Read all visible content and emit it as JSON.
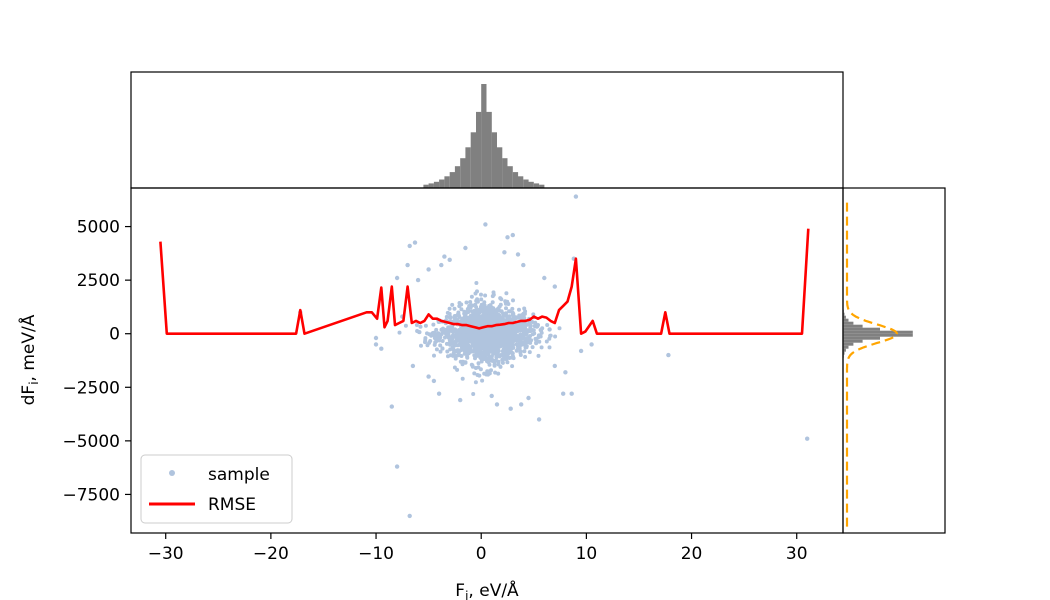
{
  "chart_data": [
    {
      "panel": "main",
      "type": "scatter",
      "xlabel_main": "F",
      "xlabel_sub": "i",
      "xlabel_tail": ", eV/Å",
      "ylabel_main": "dF",
      "ylabel_sub": "i",
      "ylabel_tail": ", meV/Å",
      "xlim": [
        -33.3,
        34.4
      ],
      "ylim": [
        -9300,
        6800
      ],
      "xticks": [
        -30,
        -20,
        -10,
        0,
        10,
        20,
        30
      ],
      "xtick_labels": [
        "−30",
        "−20",
        "−10",
        "0",
        "10",
        "20",
        "30"
      ],
      "yticks": [
        -7500,
        -5000,
        -2500,
        0,
        2500,
        5000
      ],
      "ytick_labels": [
        "−7500",
        "−5000",
        "−2500",
        "0",
        "2500",
        "5000"
      ],
      "grid": false,
      "legend_placement": "lower-left",
      "series": [
        {
          "name": "sample",
          "kind": "scatter",
          "color": "#b0c4de",
          "cloud": {
            "x_center": 0.5,
            "x_sd": 2.2,
            "y_sd": 800,
            "count": 1500
          },
          "points": [
            [
              9.0,
              6400
            ],
            [
              -6.3,
              4250
            ],
            [
              -6.8,
              4100
            ],
            [
              0.4,
              5100
            ],
            [
              2.5,
              4500
            ],
            [
              3.0,
              4600
            ],
            [
              -3.5,
              3600
            ],
            [
              -3.0,
              3450
            ],
            [
              -5.0,
              3000
            ],
            [
              3.5,
              3700
            ],
            [
              8.8,
              3500
            ],
            [
              7.0,
              2200
            ],
            [
              -7.0,
              3200
            ],
            [
              -8.0,
              2600
            ],
            [
              -10.0,
              -200
            ],
            [
              -9.5,
              -700
            ],
            [
              -10.0,
              -500
            ],
            [
              -5.0,
              -2000
            ],
            [
              -4.5,
              -2200
            ],
            [
              -8.5,
              -3400
            ],
            [
              -8.0,
              -6200
            ],
            [
              -6.8,
              -8500
            ],
            [
              5.5,
              -4000
            ],
            [
              4.5,
              -3000
            ],
            [
              1.5,
              -3300
            ],
            [
              2.8,
              -3500
            ],
            [
              7.8,
              -2800
            ],
            [
              8.6,
              -2800
            ],
            [
              9.5,
              -800
            ],
            [
              10.5,
              -500
            ],
            [
              -17.2,
              1000
            ],
            [
              17.8,
              -1000
            ],
            [
              31.0,
              -4900
            ],
            [
              -7.5,
              800
            ],
            [
              6.5,
              200
            ],
            [
              8.0,
              -1800
            ],
            [
              -4.0,
              -2800
            ],
            [
              -2.0,
              -3100
            ],
            [
              3.8,
              -3300
            ],
            [
              1.0,
              -2900
            ],
            [
              -6.0,
              2500
            ],
            [
              6.0,
              2600
            ],
            [
              -3.8,
              3200
            ],
            [
              4.0,
              3200
            ],
            [
              -1.5,
              4000
            ],
            [
              2.2,
              3800
            ],
            [
              7.0,
              -1500
            ],
            [
              -6.5,
              -1500
            ]
          ]
        },
        {
          "name": "RMSE",
          "kind": "line",
          "color": "#ff0000",
          "x": [
            -30.5,
            -29.9,
            -17.6,
            -17.2,
            -16.8,
            -10.9,
            -10.4,
            -9.9,
            -9.5,
            -9.2,
            -8.9,
            -8.5,
            -8.2,
            -7.8,
            -7.4,
            -7.0,
            -6.6,
            -6.2,
            -5.8,
            -5.4,
            -5.0,
            -4.6,
            -4.2,
            -3.8,
            -3.4,
            -3.0,
            -2.6,
            -2.2,
            -1.8,
            -1.4,
            -1.0,
            -0.6,
            -0.2,
            0.2,
            0.6,
            1.0,
            1.4,
            1.8,
            2.2,
            2.6,
            3.0,
            3.4,
            3.8,
            4.2,
            4.6,
            5.0,
            5.4,
            5.8,
            6.2,
            6.6,
            7.0,
            7.4,
            7.8,
            8.2,
            8.6,
            9.0,
            9.5,
            9.9,
            10.6,
            11.0,
            17.1,
            17.5,
            17.9,
            30.5,
            31.1
          ],
          "y": [
            4300,
            0,
            0,
            1100,
            0,
            1000,
            1000,
            700,
            2150,
            300,
            600,
            2200,
            400,
            500,
            600,
            2200,
            500,
            600,
            500,
            600,
            900,
            700,
            700,
            600,
            550,
            500,
            450,
            450,
            400,
            400,
            350,
            300,
            250,
            300,
            350,
            350,
            400,
            420,
            450,
            500,
            500,
            550,
            600,
            600,
            650,
            800,
            700,
            800,
            750,
            600,
            500,
            1100,
            1300,
            1500,
            2200,
            3500,
            0,
            100,
            600,
            0,
            0,
            1000,
            0,
            0,
            4900
          ]
        }
      ]
    },
    {
      "panel": "top-marginal",
      "type": "histogram",
      "orientation": "vertical",
      "distribution_of": "F",
      "color": "#808080",
      "bin_width": 0.5,
      "center": 0.25,
      "scale": 1.6,
      "peak": 1.0,
      "range": [
        -5.5,
        6.0
      ]
    },
    {
      "panel": "right-marginal",
      "type": "histogram",
      "orientation": "horizontal",
      "distribution_of": "dF",
      "color": "#808080",
      "bin_width": 140,
      "center": 0,
      "scale": 220,
      "peak": 1.0,
      "range": [
        -1400,
        1500
      ],
      "fit_curve": {
        "style": "dashed",
        "color": "#ffa500",
        "mean": 0,
        "sd": 430,
        "peak": 0.52
      }
    }
  ]
}
